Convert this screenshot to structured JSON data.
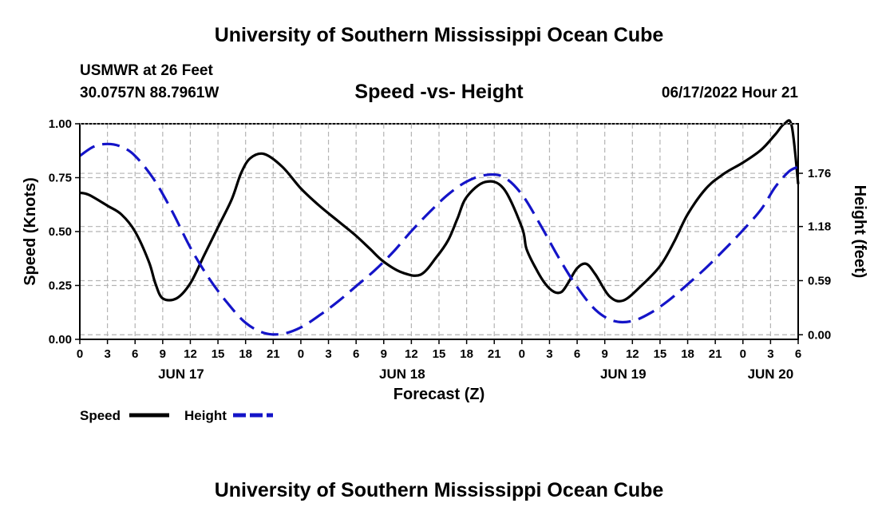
{
  "header": {
    "title": "University of Southern Mississippi Ocean Cube",
    "station": "USMWR at 26 Feet",
    "coords": "30.0757N  88.7961W",
    "subtitle": "Speed -vs- Height",
    "datetime": "06/17/2022 Hour 21"
  },
  "footer": {
    "title": "University of Southern Mississippi Ocean Cube"
  },
  "chart_data": {
    "type": "line",
    "title": "Speed -vs- Height",
    "xlabel": "Forecast (Z)",
    "ylabel": "Speed (Knots)",
    "y2label": "Height (feet)",
    "x_range_hours": [
      0,
      78
    ],
    "x_tick_labels": [
      "0",
      "3",
      "6",
      "9",
      "12",
      "15",
      "18",
      "21",
      "0",
      "3",
      "6",
      "9",
      "12",
      "15",
      "18",
      "21",
      "0",
      "3",
      "6",
      "9",
      "12",
      "15",
      "18",
      "21",
      "0",
      "3",
      "6"
    ],
    "day_labels": [
      {
        "hour": 11,
        "label": "JUN 17"
      },
      {
        "hour": 35,
        "label": "JUN 18"
      },
      {
        "hour": 59,
        "label": "JUN 19"
      },
      {
        "hour": 75,
        "label": "JUN 20"
      }
    ],
    "ylim": [
      0,
      1
    ],
    "y_ticks": [
      0.0,
      0.25,
      0.5,
      0.75,
      1.0
    ],
    "y_tick_labels": [
      "0.00",
      "0.25",
      "0.50",
      "0.75",
      "1.00"
    ],
    "y2lim": [
      -0.05,
      2.3
    ],
    "y2_ticks": [
      0.0,
      0.59,
      1.18,
      1.76
    ],
    "y2_tick_labels": [
      "0.00",
      "0.59",
      "1.18",
      "1.76"
    ],
    "grid": true,
    "legend_placement": "bottom-left",
    "series": [
      {
        "name": "Speed",
        "axis": "left",
        "color": "#000000",
        "dash": "solid",
        "x": [
          0,
          1,
          3,
          4.5,
          6,
          7.5,
          8.2,
          9,
          10.5,
          12,
          13.5,
          15,
          16.5,
          17.5,
          18.5,
          20,
          22,
          24,
          26,
          28,
          30,
          31.5,
          33,
          35,
          37,
          38.7,
          40,
          41,
          42,
          44,
          46,
          48,
          48.5,
          49.5,
          50.5,
          51.5,
          52.3,
          53,
          54,
          55,
          56,
          57.5,
          59,
          61,
          63,
          64.5,
          66,
          68,
          70,
          72,
          74,
          75.5,
          76.5,
          77.3,
          78
        ],
        "values": [
          0.68,
          0.67,
          0.62,
          0.58,
          0.5,
          0.36,
          0.26,
          0.19,
          0.19,
          0.26,
          0.39,
          0.52,
          0.65,
          0.77,
          0.84,
          0.86,
          0.8,
          0.7,
          0.62,
          0.55,
          0.48,
          0.42,
          0.36,
          0.31,
          0.3,
          0.38,
          0.46,
          0.56,
          0.66,
          0.73,
          0.7,
          0.52,
          0.42,
          0.33,
          0.26,
          0.22,
          0.22,
          0.26,
          0.33,
          0.35,
          0.3,
          0.2,
          0.18,
          0.25,
          0.34,
          0.45,
          0.58,
          0.7,
          0.77,
          0.82,
          0.88,
          0.95,
          1.0,
          0.99,
          0.72
        ],
        "values_note": "solid black curve, read against left Speed axis"
      },
      {
        "name": "Height",
        "axis": "right",
        "color": "#1414c8",
        "dash": "dashed",
        "x": [
          0,
          1.5,
          3,
          4.5,
          6,
          8,
          10,
          12,
          14,
          16,
          18,
          20,
          22,
          24,
          26,
          28,
          30,
          32,
          34,
          36,
          38,
          40,
          42,
          44,
          46,
          48,
          50,
          52,
          54,
          56,
          58,
          60,
          62,
          64,
          66,
          68,
          70,
          72,
          74,
          75.5,
          77,
          78
        ],
        "values": [
          1.95,
          2.05,
          2.08,
          2.05,
          1.95,
          1.7,
          1.35,
          0.95,
          0.62,
          0.35,
          0.13,
          0.02,
          0.01,
          0.08,
          0.21,
          0.36,
          0.53,
          0.7,
          0.9,
          1.13,
          1.34,
          1.53,
          1.67,
          1.74,
          1.72,
          1.53,
          1.2,
          0.84,
          0.52,
          0.27,
          0.15,
          0.15,
          0.24,
          0.38,
          0.55,
          0.73,
          0.93,
          1.14,
          1.37,
          1.61,
          1.78,
          1.83
        ],
        "values_note": "dashed blue curve, read against right Height axis"
      }
    ]
  }
}
